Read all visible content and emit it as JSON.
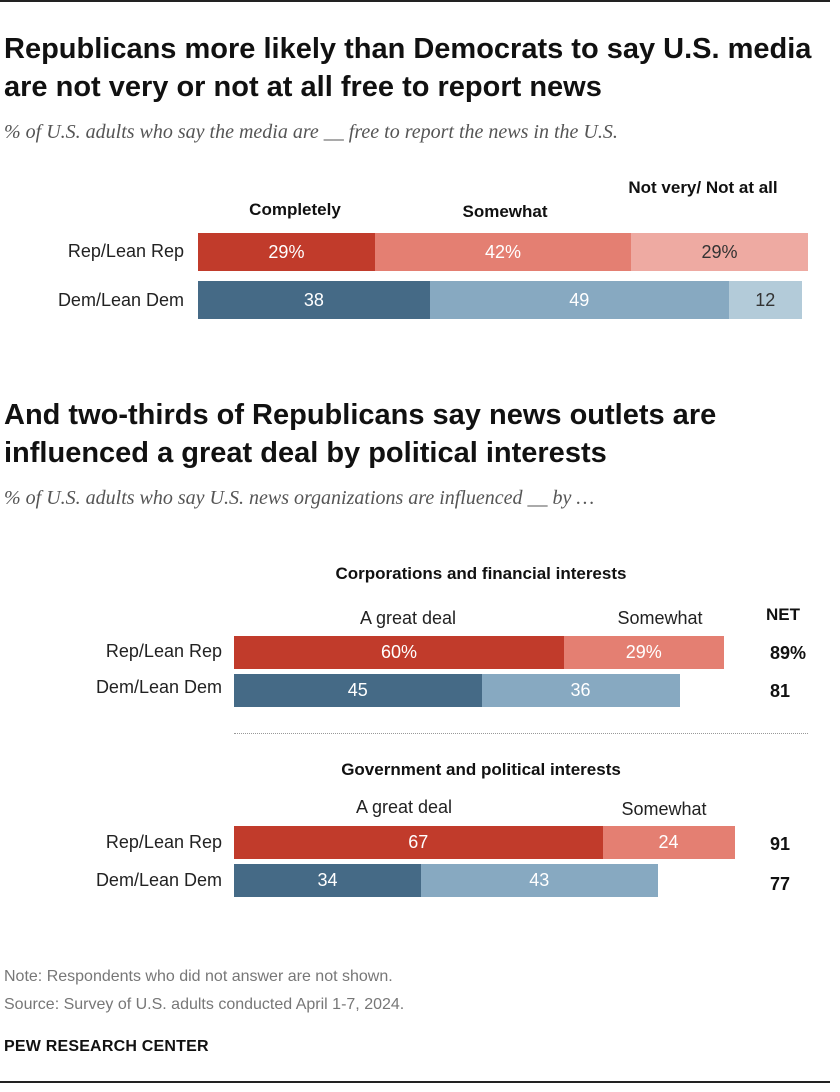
{
  "colors": {
    "rep_dark": "#c13b2b",
    "rep_mid": "#e47f72",
    "rep_light": "#eeaaa2",
    "dem_dark": "#456a86",
    "dem_mid": "#87a9c1",
    "dem_light": "#b3cbd9"
  },
  "section1": {
    "title": "Republicans more likely than Democrats to say U.S. media are not very or not at all free to report news",
    "subtitle": "% of U.S. adults who say the media are __ free to report the news in the U.S.",
    "columns": [
      "Completely",
      "Somewhat",
      "Not very/ Not at all"
    ]
  },
  "section2": {
    "title": "And two-thirds of Republicans say news outlets are influenced a great deal by political interests",
    "subtitle": "% of U.S. adults who say U.S. news organizations are influenced __ by …",
    "net_label": "NET",
    "groups": [
      {
        "title": "Corporations and financial interests",
        "columns": [
          "A great deal",
          "Somewhat"
        ]
      },
      {
        "title": "Government and political interests",
        "columns": [
          "A great deal",
          "Somewhat"
        ]
      }
    ]
  },
  "chart_data": [
    {
      "type": "bar",
      "stacked": true,
      "orientation": "horizontal",
      "categories": [
        "Rep/Lean Rep",
        "Dem/Lean Dem"
      ],
      "series": [
        {
          "name": "Completely",
          "values": [
            29,
            38
          ],
          "labels": [
            "29%",
            "38"
          ]
        },
        {
          "name": "Somewhat",
          "values": [
            42,
            49
          ],
          "labels": [
            "42%",
            "49"
          ]
        },
        {
          "name": "Not very/ Not at all",
          "values": [
            29,
            12
          ],
          "labels": [
            "29%",
            "12"
          ]
        }
      ]
    },
    {
      "type": "bar",
      "stacked": true,
      "orientation": "horizontal",
      "title": "Corporations and financial interests",
      "categories": [
        "Rep/Lean Rep",
        "Dem/Lean Dem"
      ],
      "series": [
        {
          "name": "A great deal",
          "values": [
            60,
            45
          ],
          "labels": [
            "60%",
            "45"
          ]
        },
        {
          "name": "Somewhat",
          "values": [
            29,
            36
          ],
          "labels": [
            "29%",
            "36"
          ]
        }
      ],
      "net": {
        "values": [
          89,
          81
        ],
        "labels": [
          "89%",
          "81"
        ]
      }
    },
    {
      "type": "bar",
      "stacked": true,
      "orientation": "horizontal",
      "title": "Government and political interests",
      "categories": [
        "Rep/Lean Rep",
        "Dem/Lean Dem"
      ],
      "series": [
        {
          "name": "A great deal",
          "values": [
            67,
            34
          ],
          "labels": [
            "67",
            "34"
          ]
        },
        {
          "name": "Somewhat",
          "values": [
            24,
            43
          ],
          "labels": [
            "24",
            "43"
          ]
        }
      ],
      "net": {
        "values": [
          91,
          77
        ],
        "labels": [
          "91",
          "77"
        ]
      }
    }
  ],
  "footer": {
    "note": "Note: Respondents who did not answer are not shown.",
    "source": "Source: Survey of U.S. adults conducted April 1-7, 2024.",
    "brand": "PEW RESEARCH CENTER"
  }
}
